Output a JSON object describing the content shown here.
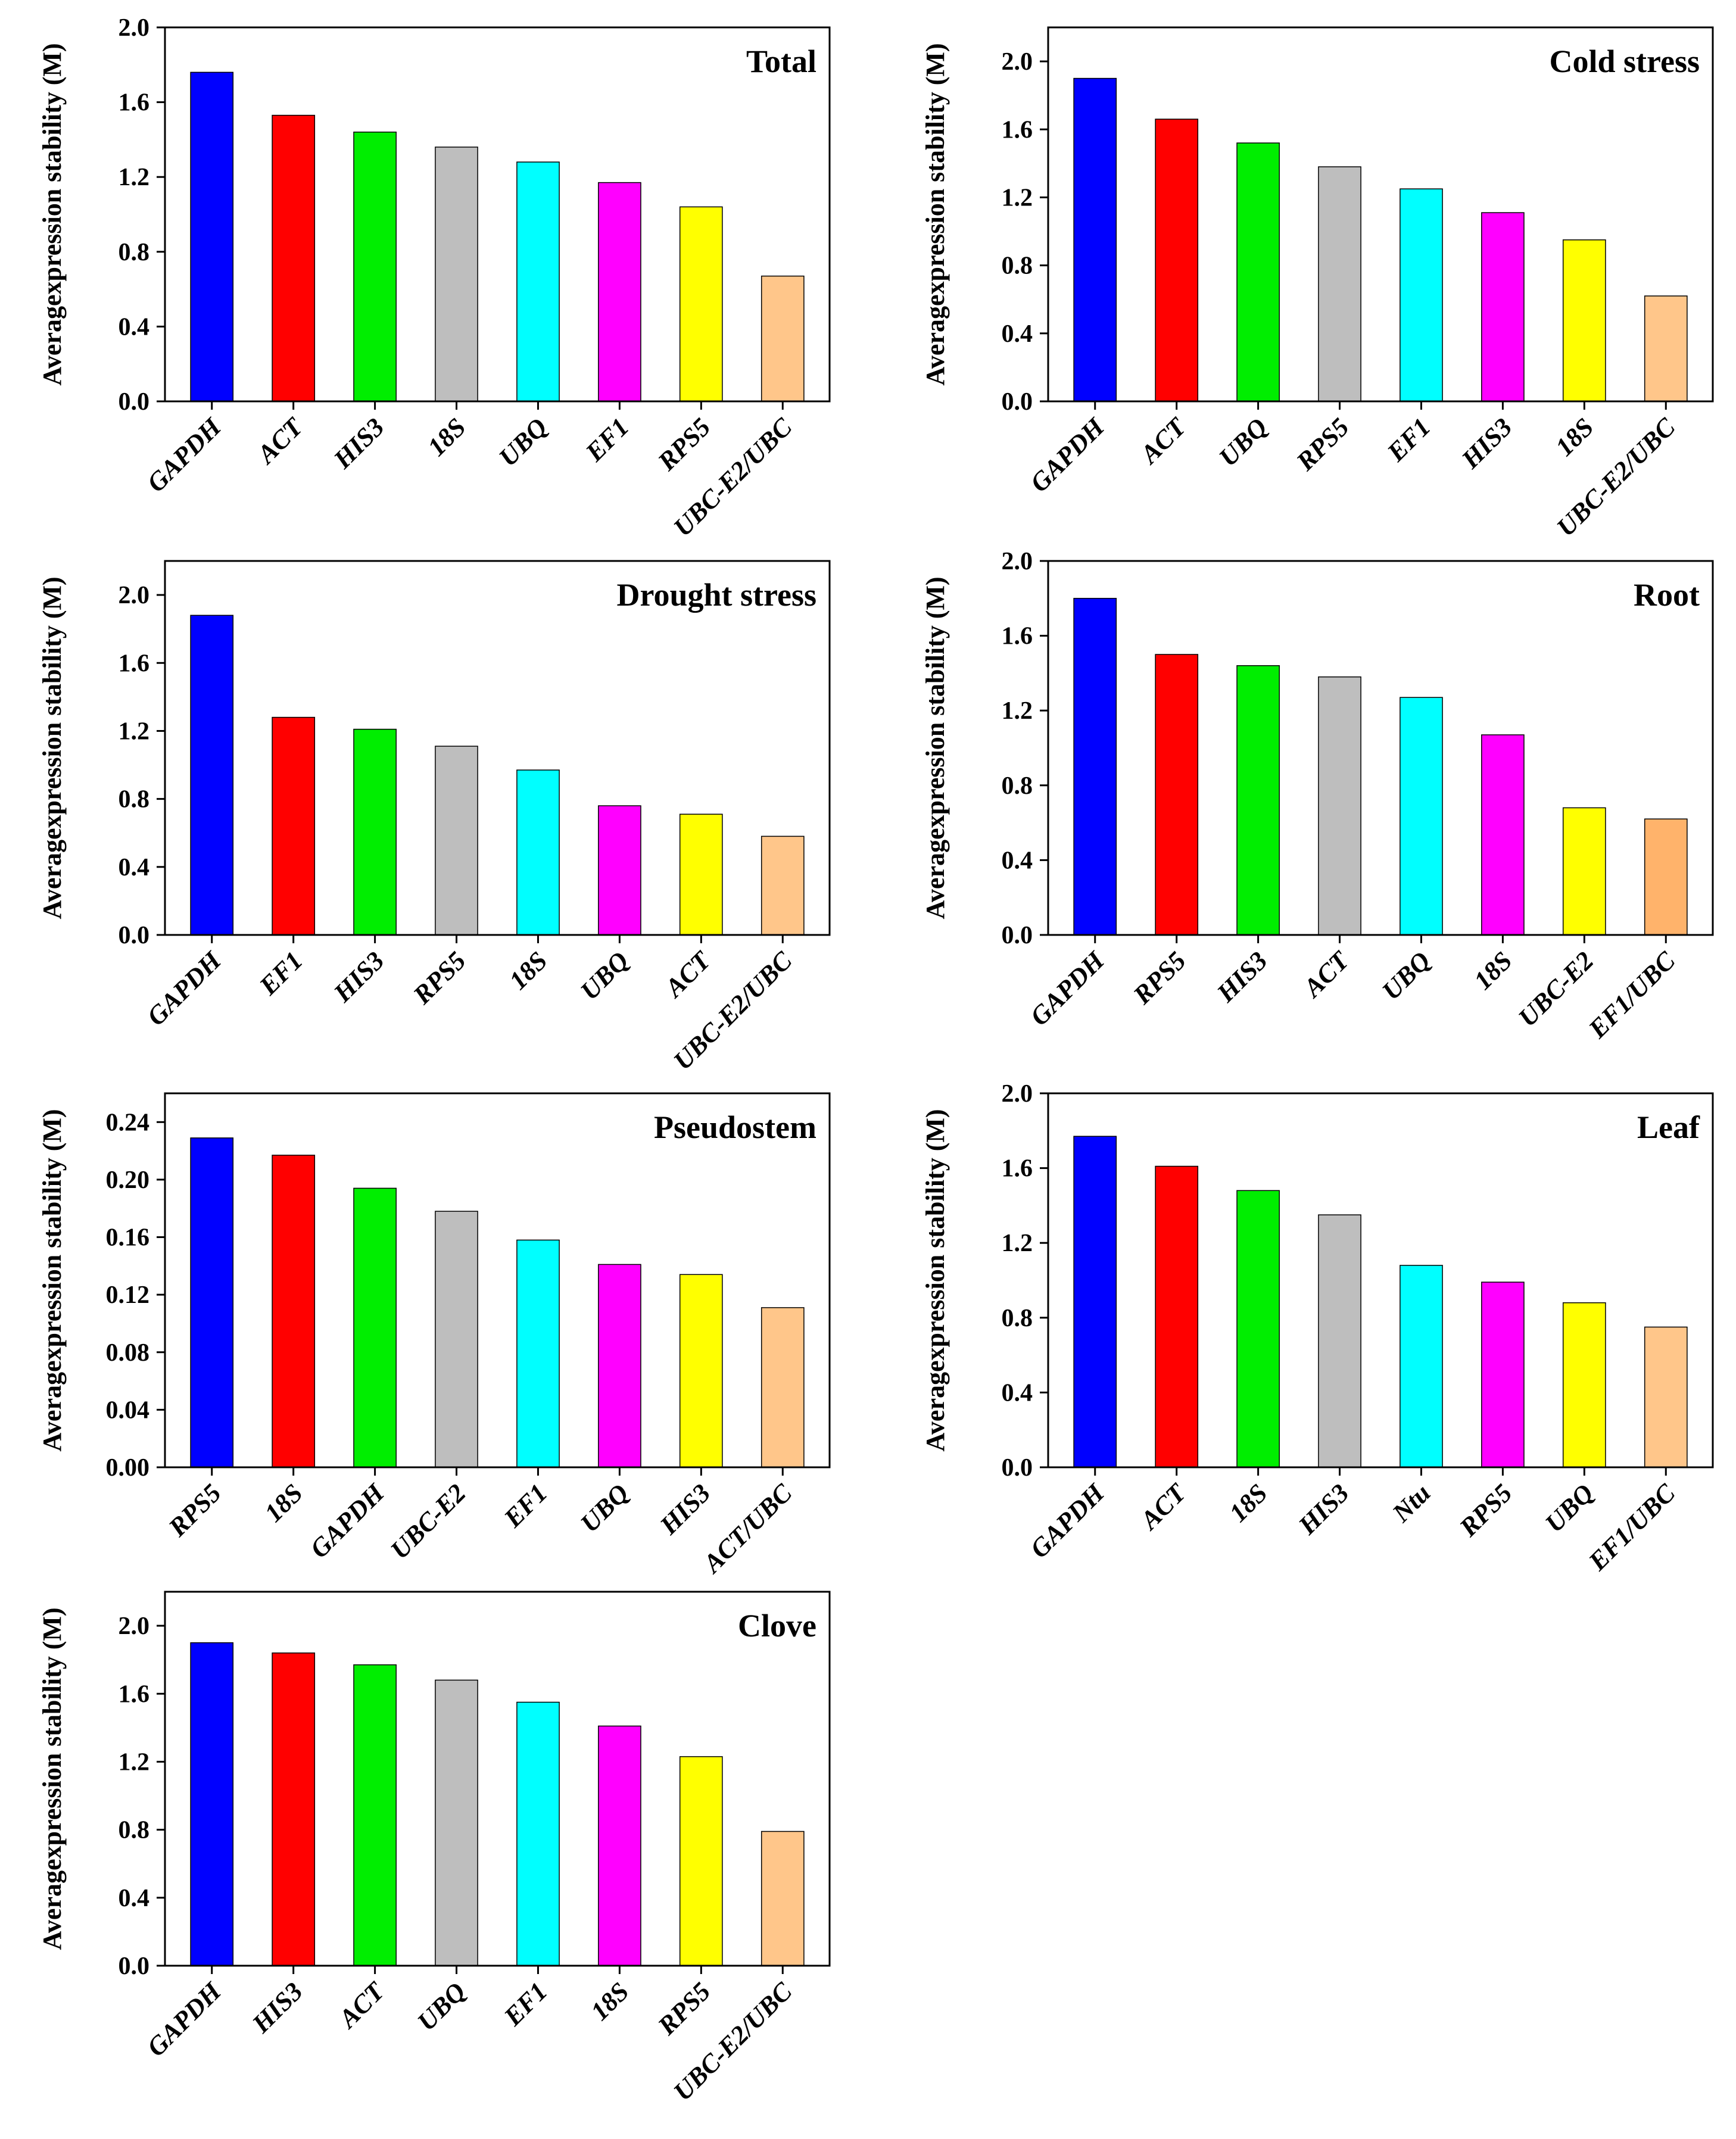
{
  "figure": {
    "colors": [
      "#0000ff",
      "#ff0000",
      "#00ee00",
      "#bebebe",
      "#00ffff",
      "#ff00ff",
      "#ffff00",
      "#ffc68a"
    ],
    "root_last_color": "#ffb36b"
  },
  "chart_data": [
    {
      "type": "bar",
      "title": "Total",
      "ylabel": "Averagexpression stability (M)",
      "xlabel": "",
      "ylim": [
        0,
        2.0
      ],
      "yticks": [
        "0.0",
        "0.4",
        "0.8",
        "1.2",
        "1.6",
        "2.0"
      ],
      "categories": [
        "GAPDH",
        "ACT",
        "HIS3",
        "18S",
        "UBQ",
        "EF1",
        "RPS5",
        "UBC-E2/UBC"
      ],
      "values": [
        1.76,
        1.53,
        1.44,
        1.36,
        1.28,
        1.17,
        1.04,
        0.67
      ]
    },
    {
      "type": "bar",
      "title": "Cold stress",
      "ylabel": "Averagexpression stability (M)",
      "xlabel": "",
      "ylim": [
        0,
        2.2
      ],
      "yticks": [
        "0.0",
        "0.4",
        "0.8",
        "1.2",
        "1.6",
        "2.0"
      ],
      "categories": [
        "GAPDH",
        "ACT",
        "UBQ",
        "RPS5",
        "EF1",
        "HIS3",
        "18S",
        "UBC-E2/UBC"
      ],
      "values": [
        1.9,
        1.66,
        1.52,
        1.38,
        1.25,
        1.11,
        0.95,
        0.62
      ]
    },
    {
      "type": "bar",
      "title": "Drought stress",
      "ylabel": "Averagexpression stability (M)",
      "xlabel": "",
      "ylim": [
        0,
        2.2
      ],
      "yticks": [
        "0.0",
        "0.4",
        "0.8",
        "1.2",
        "1.6",
        "2.0"
      ],
      "categories": [
        "GAPDH",
        "EF1",
        "HIS3",
        "RPS5",
        "18S",
        "UBQ",
        "ACT",
        "UBC-E2/UBC"
      ],
      "values": [
        1.88,
        1.28,
        1.21,
        1.11,
        0.97,
        0.76,
        0.71,
        0.58
      ]
    },
    {
      "type": "bar",
      "title": "Root",
      "ylabel": "Averagexpression stability (M)",
      "xlabel": "",
      "ylim": [
        0,
        2.0
      ],
      "yticks": [
        "0.0",
        "0.4",
        "0.8",
        "1.2",
        "1.6",
        "2.0"
      ],
      "categories": [
        "GAPDH",
        "RPS5",
        "HIS3",
        "ACT",
        "UBQ",
        "18S",
        "UBC-E2",
        "EF1/UBC"
      ],
      "values": [
        1.8,
        1.5,
        1.44,
        1.38,
        1.27,
        1.07,
        0.68,
        0.62
      ]
    },
    {
      "type": "bar",
      "title": "Pseudostem",
      "ylabel": "Averagexpression stability (M)",
      "xlabel": "",
      "ylim": [
        0,
        0.26
      ],
      "yticks": [
        "0.00",
        "0.04",
        "0.08",
        "0.12",
        "0.16",
        "0.20",
        "0.24"
      ],
      "categories": [
        "RPS5",
        "18S",
        "GAPDH",
        "UBC-E2",
        "EF1",
        "UBQ",
        "HIS3",
        "ACT/UBC"
      ],
      "values": [
        0.229,
        0.217,
        0.194,
        0.178,
        0.158,
        0.141,
        0.134,
        0.111
      ]
    },
    {
      "type": "bar",
      "title": "Leaf",
      "ylabel": "Averagexpression stability (M)",
      "xlabel": "",
      "ylim": [
        0,
        2.0
      ],
      "yticks": [
        "0.0",
        "0.4",
        "0.8",
        "1.2",
        "1.6",
        "2.0"
      ],
      "categories": [
        "GAPDH",
        "ACT",
        "18S",
        "HIS3",
        "Ntu",
        "RPS5",
        "UBQ",
        "EF1/UBC"
      ],
      "values": [
        1.77,
        1.61,
        1.48,
        1.35,
        1.08,
        0.99,
        0.88,
        0.75
      ]
    },
    {
      "type": "bar",
      "title": "Clove",
      "ylabel": "Averagexpression stability (M)",
      "xlabel": "",
      "ylim": [
        0,
        2.2
      ],
      "yticks": [
        "0.0",
        "0.4",
        "0.8",
        "1.2",
        "1.6",
        "2.0"
      ],
      "categories": [
        "GAPDH",
        "HIS3",
        "ACT",
        "UBQ",
        "EF1",
        "18S",
        "RPS5",
        "UBC-E2/UBC"
      ],
      "values": [
        1.9,
        1.84,
        1.77,
        1.68,
        1.55,
        1.41,
        1.23,
        0.79
      ]
    }
  ]
}
